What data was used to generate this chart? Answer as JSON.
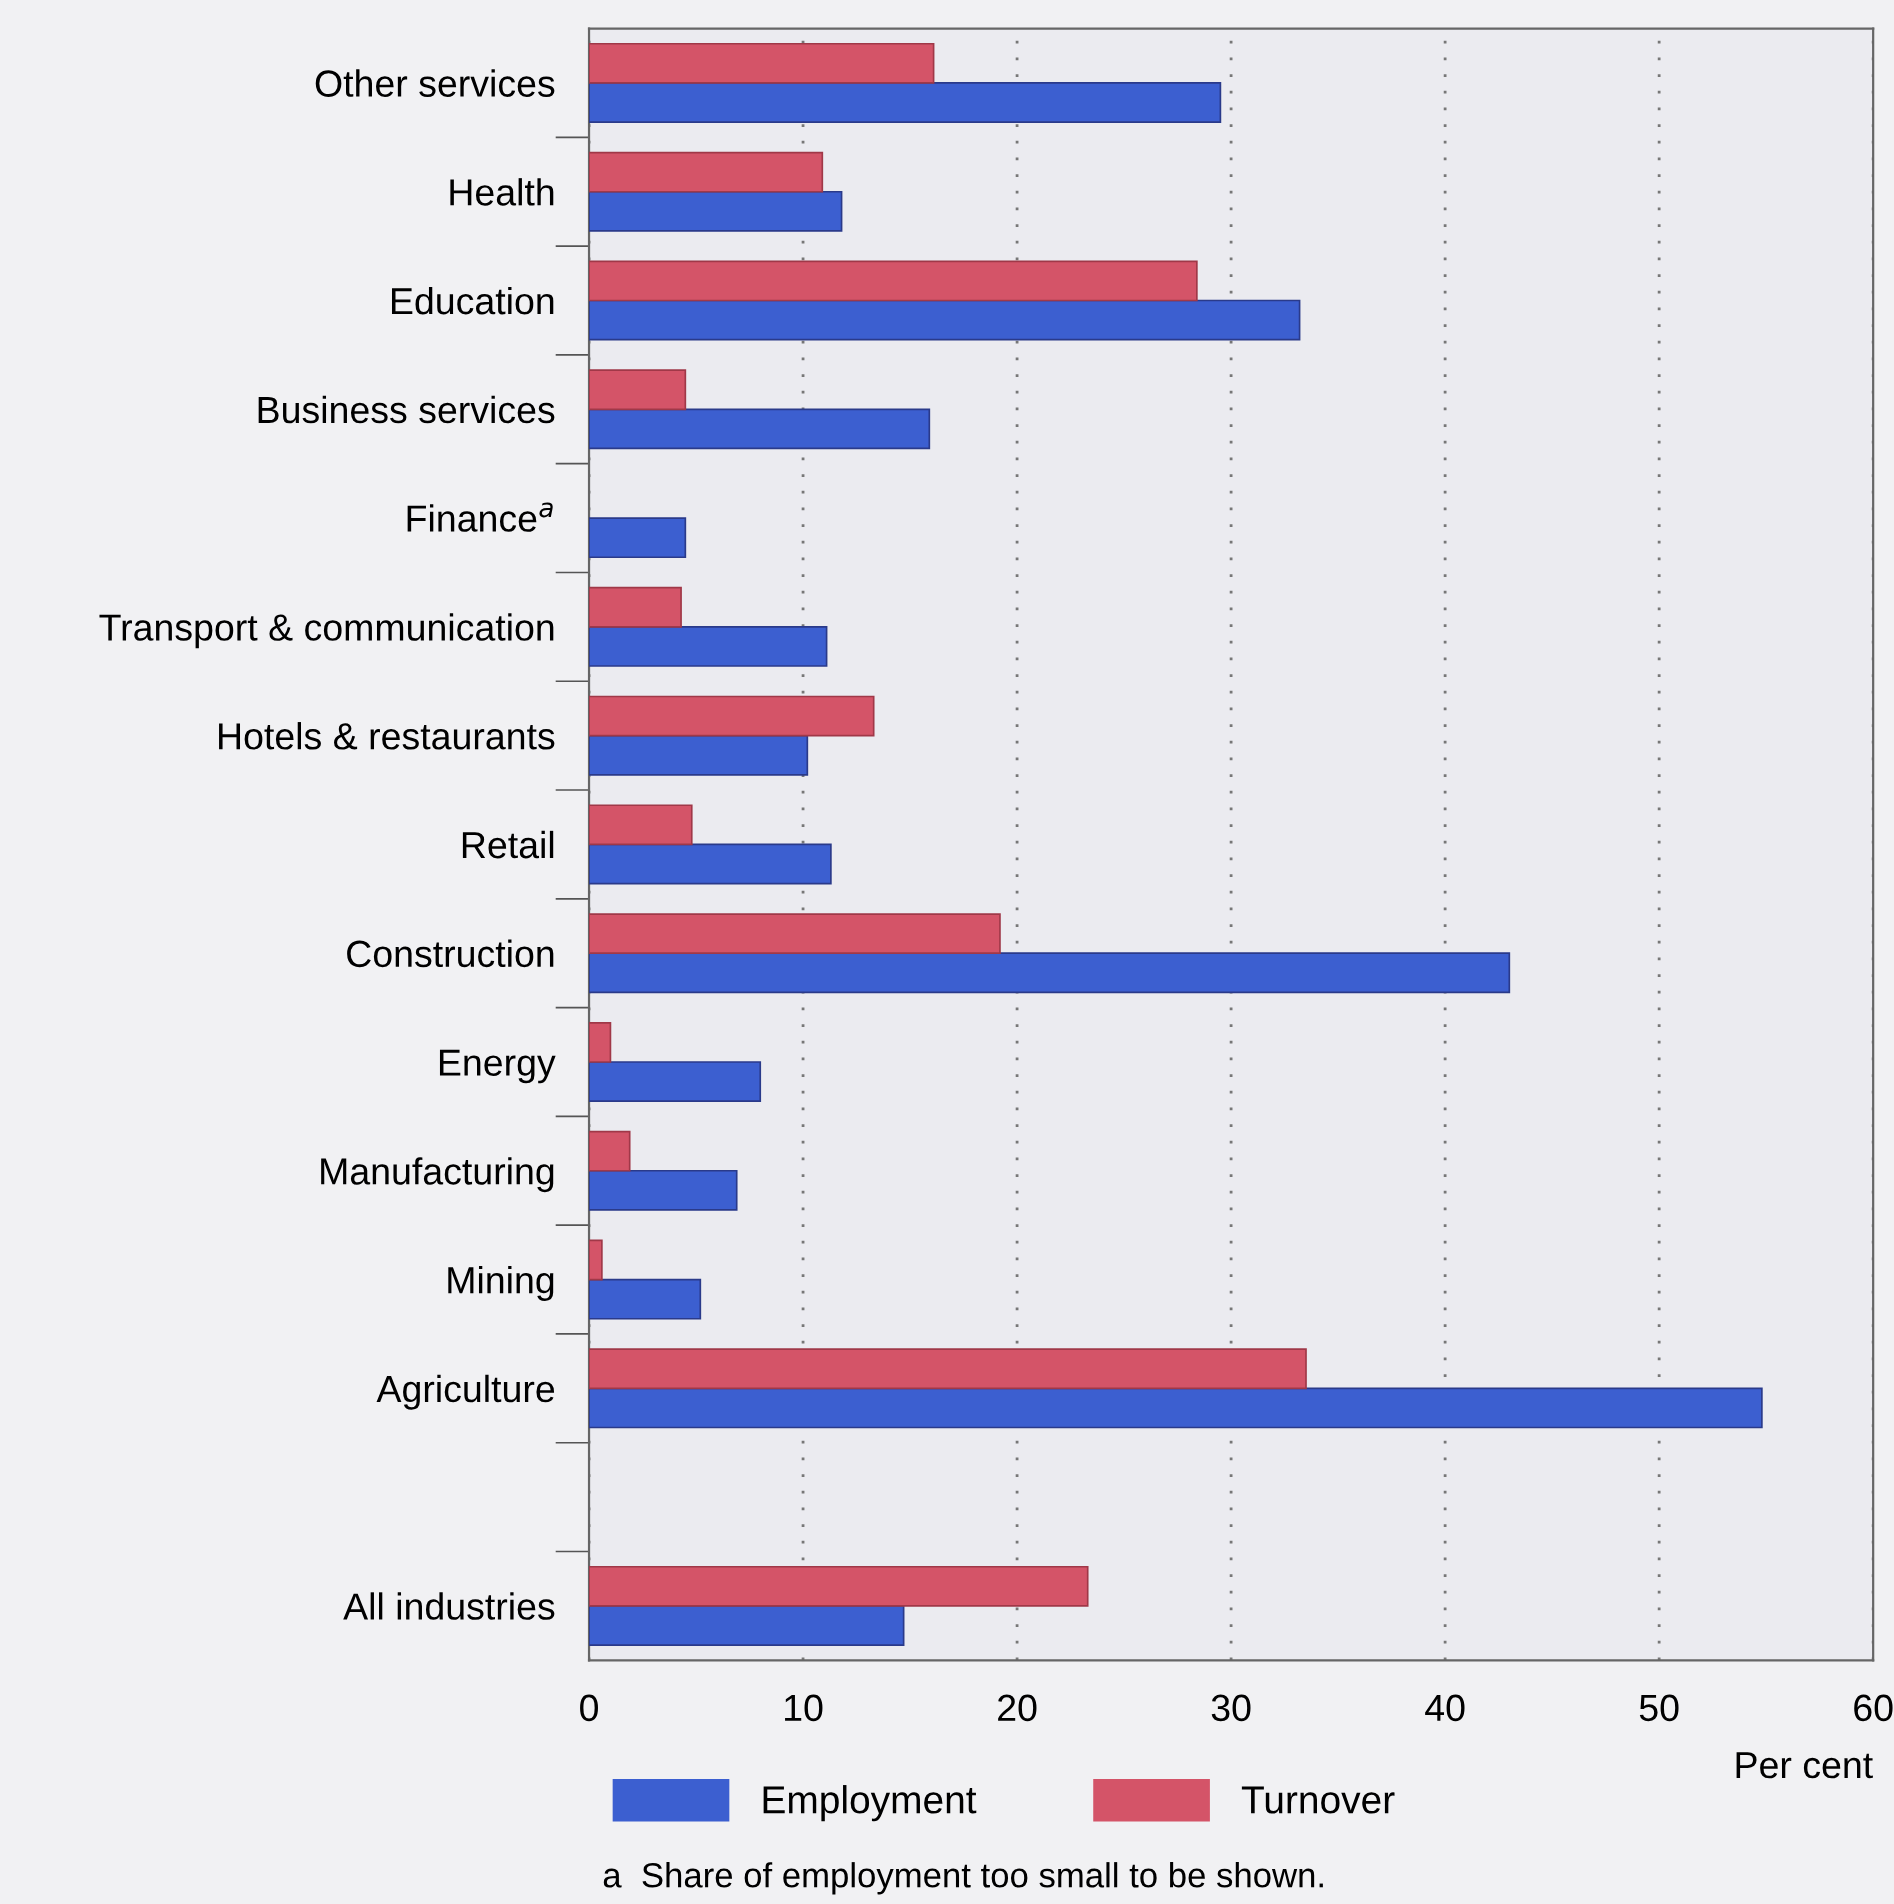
{
  "chart_data": {
    "type": "bar",
    "orientation": "horizontal",
    "categories": [
      "Other services",
      "Health",
      "Education",
      "Business services",
      "Finance$^{a}$",
      "Transport & communication",
      "Hotels & restaurants",
      "Retail",
      "Construction",
      "Energy",
      "Manufacturing",
      "Mining",
      "Agriculture",
      null,
      "All industries"
    ],
    "series": [
      {
        "name": "Employment",
        "color": "#3c5fd0",
        "values": [
          29.5,
          11.8,
          33.2,
          15.9,
          4.5,
          11.1,
          10.2,
          11.3,
          43.0,
          8.0,
          6.9,
          5.2,
          54.8,
          null,
          14.7
        ]
      },
      {
        "name": "Turnover",
        "color": "#d45468",
        "values": [
          16.1,
          10.9,
          28.4,
          4.5,
          null,
          4.3,
          13.3,
          4.8,
          19.2,
          1.0,
          1.9,
          0.6,
          33.5,
          null,
          23.3
        ]
      }
    ],
    "xlim": [
      0,
      60
    ],
    "xticks": [
      0,
      10,
      20,
      30,
      40,
      50,
      60
    ],
    "xlabel": "Per cent",
    "grid": "x",
    "legend": "bottom",
    "annotations": [
      "a  Share of employment too small to be shown."
    ]
  }
}
